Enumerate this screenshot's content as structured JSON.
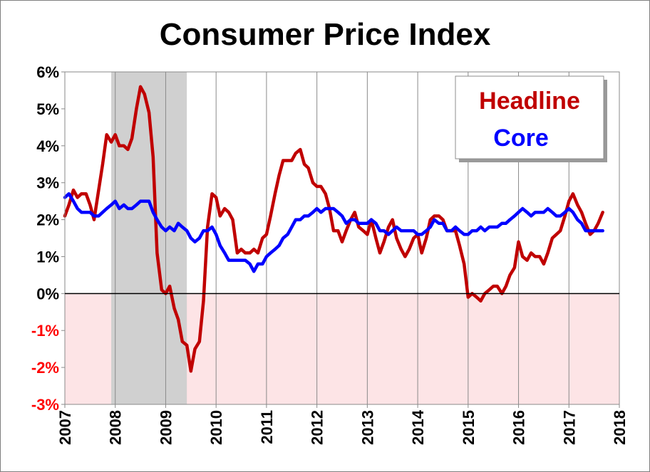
{
  "chart_data": {
    "type": "line",
    "title": "Consumer Price Index",
    "xlabel": "",
    "ylabel": "",
    "xlim": [
      2007,
      2018
    ],
    "ylim": [
      -3,
      6
    ],
    "y_ticks": [
      6,
      5,
      4,
      3,
      2,
      1,
      0,
      -1,
      -2,
      -3
    ],
    "y_tick_labels": [
      "6%",
      "5%",
      "4%",
      "3%",
      "2%",
      "1%",
      "0%",
      "-1%",
      "-2%",
      "-3%"
    ],
    "negative_tick_color": "#ff0000",
    "x_ticks": [
      2007,
      2008,
      2009,
      2010,
      2011,
      2012,
      2013,
      2014,
      2015,
      2016,
      2017,
      2018
    ],
    "x_tick_labels": [
      "2007",
      "2008",
      "2009",
      "2010",
      "2011",
      "2012",
      "2013",
      "2014",
      "2015",
      "2016",
      "2017",
      "2018"
    ],
    "grid": "vertical",
    "recession": {
      "start": 2007.92,
      "end": 2009.42,
      "color": "#d0d0d0"
    },
    "negative_region_color": "#fde4e6",
    "legend": {
      "position": "top-right",
      "style": "text-only"
    },
    "series": [
      {
        "name": "Headline",
        "color": "#c00000",
        "points": [
          [
            2007.0,
            2.1
          ],
          [
            2007.08,
            2.4
          ],
          [
            2007.17,
            2.8
          ],
          [
            2007.25,
            2.6
          ],
          [
            2007.33,
            2.7
          ],
          [
            2007.42,
            2.7
          ],
          [
            2007.5,
            2.4
          ],
          [
            2007.58,
            2.0
          ],
          [
            2007.67,
            2.8
          ],
          [
            2007.75,
            3.5
          ],
          [
            2007.83,
            4.3
          ],
          [
            2007.92,
            4.1
          ],
          [
            2008.0,
            4.3
          ],
          [
            2008.08,
            4.0
          ],
          [
            2008.17,
            4.0
          ],
          [
            2008.25,
            3.9
          ],
          [
            2008.33,
            4.2
          ],
          [
            2008.42,
            5.0
          ],
          [
            2008.5,
            5.6
          ],
          [
            2008.58,
            5.4
          ],
          [
            2008.67,
            4.9
          ],
          [
            2008.75,
            3.7
          ],
          [
            2008.83,
            1.1
          ],
          [
            2008.92,
            0.1
          ],
          [
            2009.0,
            0.0
          ],
          [
            2009.08,
            0.2
          ],
          [
            2009.17,
            -0.4
          ],
          [
            2009.25,
            -0.7
          ],
          [
            2009.33,
            -1.3
          ],
          [
            2009.42,
            -1.4
          ],
          [
            2009.5,
            -2.1
          ],
          [
            2009.58,
            -1.5
          ],
          [
            2009.67,
            -1.3
          ],
          [
            2009.75,
            -0.2
          ],
          [
            2009.83,
            1.8
          ],
          [
            2009.92,
            2.7
          ],
          [
            2010.0,
            2.6
          ],
          [
            2010.08,
            2.1
          ],
          [
            2010.17,
            2.3
          ],
          [
            2010.25,
            2.2
          ],
          [
            2010.33,
            2.0
          ],
          [
            2010.42,
            1.1
          ],
          [
            2010.5,
            1.2
          ],
          [
            2010.58,
            1.1
          ],
          [
            2010.67,
            1.1
          ],
          [
            2010.75,
            1.2
          ],
          [
            2010.83,
            1.1
          ],
          [
            2010.92,
            1.5
          ],
          [
            2011.0,
            1.6
          ],
          [
            2011.08,
            2.1
          ],
          [
            2011.17,
            2.7
          ],
          [
            2011.25,
            3.2
          ],
          [
            2011.33,
            3.6
          ],
          [
            2011.42,
            3.6
          ],
          [
            2011.5,
            3.6
          ],
          [
            2011.58,
            3.8
          ],
          [
            2011.67,
            3.9
          ],
          [
            2011.75,
            3.5
          ],
          [
            2011.83,
            3.4
          ],
          [
            2011.92,
            3.0
          ],
          [
            2012.0,
            2.9
          ],
          [
            2012.08,
            2.9
          ],
          [
            2012.17,
            2.7
          ],
          [
            2012.25,
            2.3
          ],
          [
            2012.33,
            1.7
          ],
          [
            2012.42,
            1.7
          ],
          [
            2012.5,
            1.4
          ],
          [
            2012.58,
            1.7
          ],
          [
            2012.67,
            2.0
          ],
          [
            2012.75,
            2.2
          ],
          [
            2012.83,
            1.8
          ],
          [
            2012.92,
            1.7
          ],
          [
            2013.0,
            1.6
          ],
          [
            2013.08,
            2.0
          ],
          [
            2013.17,
            1.5
          ],
          [
            2013.25,
            1.1
          ],
          [
            2013.33,
            1.4
          ],
          [
            2013.42,
            1.8
          ],
          [
            2013.5,
            2.0
          ],
          [
            2013.58,
            1.5
          ],
          [
            2013.67,
            1.2
          ],
          [
            2013.75,
            1.0
          ],
          [
            2013.83,
            1.2
          ],
          [
            2013.92,
            1.5
          ],
          [
            2014.0,
            1.6
          ],
          [
            2014.08,
            1.1
          ],
          [
            2014.17,
            1.5
          ],
          [
            2014.25,
            2.0
          ],
          [
            2014.33,
            2.1
          ],
          [
            2014.42,
            2.1
          ],
          [
            2014.5,
            2.0
          ],
          [
            2014.58,
            1.7
          ],
          [
            2014.67,
            1.7
          ],
          [
            2014.75,
            1.7
          ],
          [
            2014.83,
            1.3
          ],
          [
            2014.92,
            0.8
          ],
          [
            2015.0,
            -0.1
          ],
          [
            2015.08,
            0.0
          ],
          [
            2015.17,
            -0.1
          ],
          [
            2015.25,
            -0.2
          ],
          [
            2015.33,
            0.0
          ],
          [
            2015.42,
            0.1
          ],
          [
            2015.5,
            0.2
          ],
          [
            2015.58,
            0.2
          ],
          [
            2015.67,
            0.0
          ],
          [
            2015.75,
            0.2
          ],
          [
            2015.83,
            0.5
          ],
          [
            2015.92,
            0.7
          ],
          [
            2016.0,
            1.4
          ],
          [
            2016.08,
            1.0
          ],
          [
            2016.17,
            0.9
          ],
          [
            2016.25,
            1.1
          ],
          [
            2016.33,
            1.0
          ],
          [
            2016.42,
            1.0
          ],
          [
            2016.5,
            0.8
          ],
          [
            2016.58,
            1.1
          ],
          [
            2016.67,
            1.5
          ],
          [
            2016.75,
            1.6
          ],
          [
            2016.83,
            1.7
          ],
          [
            2016.92,
            2.1
          ],
          [
            2017.0,
            2.5
          ],
          [
            2017.08,
            2.7
          ],
          [
            2017.17,
            2.4
          ],
          [
            2017.25,
            2.2
          ],
          [
            2017.33,
            1.9
          ],
          [
            2017.42,
            1.6
          ],
          [
            2017.5,
            1.7
          ],
          [
            2017.58,
            1.9
          ],
          [
            2017.67,
            2.2
          ]
        ]
      },
      {
        "name": "Core",
        "color": "#0000ff",
        "points": [
          [
            2007.0,
            2.6
          ],
          [
            2007.08,
            2.7
          ],
          [
            2007.17,
            2.5
          ],
          [
            2007.25,
            2.3
          ],
          [
            2007.33,
            2.2
          ],
          [
            2007.42,
            2.2
          ],
          [
            2007.5,
            2.2
          ],
          [
            2007.58,
            2.1
          ],
          [
            2007.67,
            2.1
          ],
          [
            2007.75,
            2.2
          ],
          [
            2007.83,
            2.3
          ],
          [
            2007.92,
            2.4
          ],
          [
            2008.0,
            2.5
          ],
          [
            2008.08,
            2.3
          ],
          [
            2008.17,
            2.4
          ],
          [
            2008.25,
            2.3
          ],
          [
            2008.33,
            2.3
          ],
          [
            2008.42,
            2.4
          ],
          [
            2008.5,
            2.5
          ],
          [
            2008.58,
            2.5
          ],
          [
            2008.67,
            2.5
          ],
          [
            2008.75,
            2.2
          ],
          [
            2008.83,
            2.0
          ],
          [
            2008.92,
            1.8
          ],
          [
            2009.0,
            1.7
          ],
          [
            2009.08,
            1.8
          ],
          [
            2009.17,
            1.7
          ],
          [
            2009.25,
            1.9
          ],
          [
            2009.33,
            1.8
          ],
          [
            2009.42,
            1.7
          ],
          [
            2009.5,
            1.5
          ],
          [
            2009.58,
            1.4
          ],
          [
            2009.67,
            1.5
          ],
          [
            2009.75,
            1.7
          ],
          [
            2009.83,
            1.7
          ],
          [
            2009.92,
            1.8
          ],
          [
            2010.0,
            1.6
          ],
          [
            2010.08,
            1.3
          ],
          [
            2010.17,
            1.1
          ],
          [
            2010.25,
            0.9
          ],
          [
            2010.33,
            0.9
          ],
          [
            2010.42,
            0.9
          ],
          [
            2010.5,
            0.9
          ],
          [
            2010.58,
            0.9
          ],
          [
            2010.67,
            0.8
          ],
          [
            2010.75,
            0.6
          ],
          [
            2010.83,
            0.8
          ],
          [
            2010.92,
            0.8
          ],
          [
            2011.0,
            1.0
          ],
          [
            2011.08,
            1.1
          ],
          [
            2011.17,
            1.2
          ],
          [
            2011.25,
            1.3
          ],
          [
            2011.33,
            1.5
          ],
          [
            2011.42,
            1.6
          ],
          [
            2011.5,
            1.8
          ],
          [
            2011.58,
            2.0
          ],
          [
            2011.67,
            2.0
          ],
          [
            2011.75,
            2.1
          ],
          [
            2011.83,
            2.1
          ],
          [
            2011.92,
            2.2
          ],
          [
            2012.0,
            2.3
          ],
          [
            2012.08,
            2.2
          ],
          [
            2012.17,
            2.3
          ],
          [
            2012.25,
            2.3
          ],
          [
            2012.33,
            2.3
          ],
          [
            2012.42,
            2.2
          ],
          [
            2012.5,
            2.1
          ],
          [
            2012.58,
            1.9
          ],
          [
            2012.67,
            2.0
          ],
          [
            2012.75,
            2.0
          ],
          [
            2012.83,
            1.9
          ],
          [
            2012.92,
            1.9
          ],
          [
            2013.0,
            1.9
          ],
          [
            2013.08,
            2.0
          ],
          [
            2013.17,
            1.9
          ],
          [
            2013.25,
            1.7
          ],
          [
            2013.33,
            1.7
          ],
          [
            2013.42,
            1.6
          ],
          [
            2013.5,
            1.7
          ],
          [
            2013.58,
            1.8
          ],
          [
            2013.67,
            1.7
          ],
          [
            2013.75,
            1.7
          ],
          [
            2013.83,
            1.7
          ],
          [
            2013.92,
            1.7
          ],
          [
            2014.0,
            1.6
          ],
          [
            2014.08,
            1.6
          ],
          [
            2014.17,
            1.7
          ],
          [
            2014.25,
            1.8
          ],
          [
            2014.33,
            2.0
          ],
          [
            2014.42,
            1.9
          ],
          [
            2014.5,
            1.9
          ],
          [
            2014.58,
            1.7
          ],
          [
            2014.67,
            1.7
          ],
          [
            2014.75,
            1.8
          ],
          [
            2014.83,
            1.7
          ],
          [
            2014.92,
            1.6
          ],
          [
            2015.0,
            1.6
          ],
          [
            2015.08,
            1.7
          ],
          [
            2015.17,
            1.7
          ],
          [
            2015.25,
            1.8
          ],
          [
            2015.33,
            1.7
          ],
          [
            2015.42,
            1.8
          ],
          [
            2015.5,
            1.8
          ],
          [
            2015.58,
            1.8
          ],
          [
            2015.67,
            1.9
          ],
          [
            2015.75,
            1.9
          ],
          [
            2015.83,
            2.0
          ],
          [
            2015.92,
            2.1
          ],
          [
            2016.0,
            2.2
          ],
          [
            2016.08,
            2.3
          ],
          [
            2016.17,
            2.2
          ],
          [
            2016.25,
            2.1
          ],
          [
            2016.33,
            2.2
          ],
          [
            2016.42,
            2.2
          ],
          [
            2016.5,
            2.2
          ],
          [
            2016.58,
            2.3
          ],
          [
            2016.67,
            2.2
          ],
          [
            2016.75,
            2.1
          ],
          [
            2016.83,
            2.1
          ],
          [
            2016.92,
            2.2
          ],
          [
            2017.0,
            2.3
          ],
          [
            2017.08,
            2.2
          ],
          [
            2017.17,
            2.0
          ],
          [
            2017.25,
            1.9
          ],
          [
            2017.33,
            1.7
          ],
          [
            2017.42,
            1.7
          ],
          [
            2017.5,
            1.7
          ],
          [
            2017.58,
            1.7
          ],
          [
            2017.67,
            1.7
          ]
        ]
      }
    ]
  }
}
